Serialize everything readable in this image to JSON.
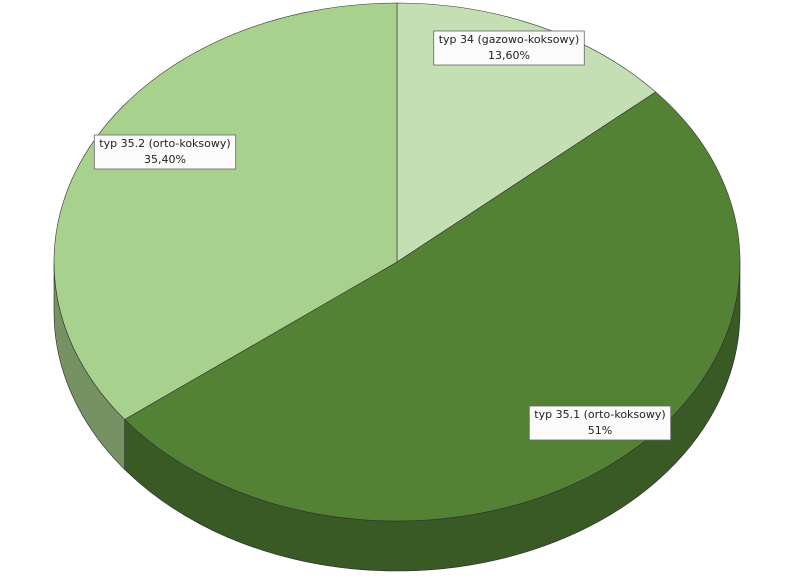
{
  "chart_data": {
    "type": "pie",
    "categories": [
      "typ 34 (gazowo-koksowy)",
      "typ 35.1 (orto-koksowy)",
      "typ 35.2 (orto-koksowy)"
    ],
    "values": [
      13.6,
      51,
      35.4
    ],
    "value_labels": [
      "13,60%",
      "51%",
      "35,40%"
    ],
    "colors": [
      "#c5dfb4",
      "#548235",
      "#a9d18e"
    ]
  }
}
